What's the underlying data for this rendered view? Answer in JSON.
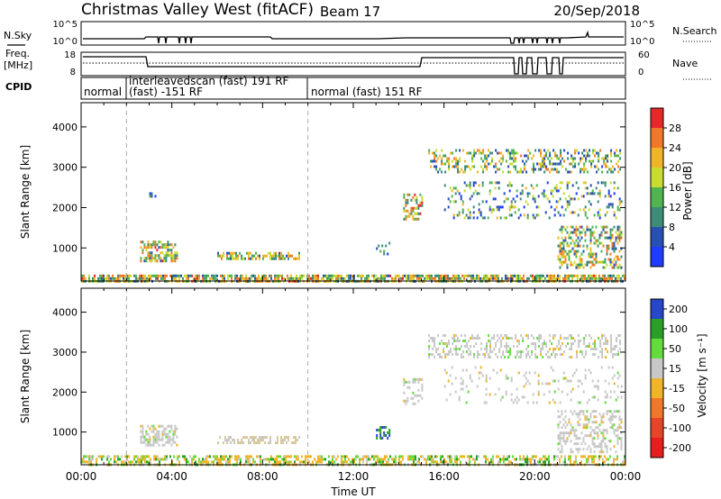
{
  "header": {
    "title": "Christmas Valley West (fitACF)",
    "beam": "Beam 17",
    "date": "20/Sep/2018"
  },
  "top_panel_labels": {
    "nsky": "N.Sky",
    "freq": "Freq.",
    "mhz": "[MHz]",
    "cpid": "CPID",
    "nsearch": "N.Search",
    "nave": "Nave",
    "nsky_ticks": [
      "10^5",
      "10^0"
    ],
    "nsearch_ticks": [
      "10^5",
      "10^0"
    ],
    "freq_ticks": [
      "18",
      "8"
    ],
    "nave_ticks": [
      "60",
      "0"
    ]
  },
  "cpid_segments": [
    {
      "label": "normal",
      "start_hour": 0,
      "end_hour": 2
    },
    {
      "label": "interleavedscan (fast) 191 RF",
      "label2": "(fast) -151 RF",
      "start_hour": 2,
      "end_hour": 10
    },
    {
      "label": "normal (fast) 151 RF",
      "start_hour": 10,
      "end_hour": 24
    }
  ],
  "chart_data": [
    {
      "type": "heatmap",
      "name": "power",
      "ylabel": "Slant Range [km]",
      "xlabel": "",
      "ylim": [
        180,
        4600
      ],
      "yticks": [
        1000,
        2000,
        3000,
        4000
      ],
      "colorbar": {
        "label": "Power [dB]",
        "range": [
          0,
          32
        ],
        "ticks": [
          4,
          8,
          12,
          16,
          20,
          24,
          28
        ],
        "colors": [
          "#1e3cff",
          "#2850b4",
          "#3c8c78",
          "#50b450",
          "#c8dc32",
          "#f0b428",
          "#f07828",
          "#e62828"
        ]
      },
      "regions": [
        {
          "t0": 0.0,
          "t1": 24.0,
          "r0": 180,
          "r1": 340,
          "level": 0.55,
          "density": 0.75
        },
        {
          "t0": 2.6,
          "t1": 4.2,
          "r0": 650,
          "r1": 1180,
          "level": 0.55,
          "density": 0.6
        },
        {
          "t0": 6.0,
          "t1": 9.6,
          "r0": 700,
          "r1": 900,
          "level": 0.5,
          "density": 0.55
        },
        {
          "t0": 3.0,
          "t1": 3.3,
          "r0": 2250,
          "r1": 2380,
          "level": 0.3,
          "density": 0.5
        },
        {
          "t0": 13.0,
          "t1": 13.6,
          "r0": 850,
          "r1": 1150,
          "level": 0.3,
          "density": 0.35
        },
        {
          "t0": 14.2,
          "t1": 15.0,
          "r0": 1700,
          "r1": 2350,
          "level": 0.6,
          "density": 0.45
        },
        {
          "t0": 15.3,
          "t1": 23.8,
          "r0": 2900,
          "r1": 3450,
          "level": 0.45,
          "density": 0.35
        },
        {
          "t0": 16.0,
          "t1": 23.8,
          "r0": 1750,
          "r1": 2650,
          "level": 0.35,
          "density": 0.18
        },
        {
          "t0": 21.0,
          "t1": 23.8,
          "r0": 500,
          "r1": 1550,
          "level": 0.5,
          "density": 0.4
        }
      ]
    },
    {
      "type": "heatmap",
      "name": "velocity",
      "ylabel": "Slant Range [km]",
      "xlabel": "Time UT",
      "ylim": [
        180,
        4600
      ],
      "yticks": [
        1000,
        2000,
        3000,
        4000
      ],
      "xticks": [
        "00:00",
        "04:00",
        "08:00",
        "12:00",
        "16:00",
        "20:00",
        "00:00"
      ],
      "colorbar": {
        "label": "Velocity [m s⁻¹]",
        "ticks": [
          "200",
          "100",
          "50",
          "15",
          "-15",
          "-50",
          "-100",
          "-200"
        ],
        "colors": [
          "#2846c8",
          "#28a028",
          "#64dc3c",
          "#c8c8c8",
          "#f0b428",
          "#f07828",
          "#e64628",
          "#e61e1e"
        ]
      },
      "regions": [
        {
          "t0": 0.0,
          "t1": 24.0,
          "r0": 180,
          "r1": 420,
          "tone": "mixed",
          "density": 0.55
        },
        {
          "t0": 2.6,
          "t1": 4.2,
          "r0": 650,
          "r1": 1180,
          "tone": "grey",
          "density": 0.55
        },
        {
          "t0": 6.0,
          "t1": 9.6,
          "r0": 700,
          "r1": 900,
          "tone": "tan",
          "density": 0.5
        },
        {
          "t0": 13.0,
          "t1": 13.6,
          "r0": 850,
          "r1": 1150,
          "tone": "blue",
          "density": 0.35
        },
        {
          "t0": 14.2,
          "t1": 15.0,
          "r0": 1700,
          "r1": 2350,
          "tone": "grey",
          "density": 0.35
        },
        {
          "t0": 15.3,
          "t1": 23.8,
          "r0": 2900,
          "r1": 3450,
          "tone": "grey",
          "density": 0.35
        },
        {
          "t0": 16.0,
          "t1": 23.8,
          "r0": 1750,
          "r1": 2650,
          "tone": "grey",
          "density": 0.12
        },
        {
          "t0": 21.0,
          "t1": 23.8,
          "r0": 500,
          "r1": 1550,
          "tone": "grey",
          "density": 0.4
        }
      ]
    }
  ]
}
